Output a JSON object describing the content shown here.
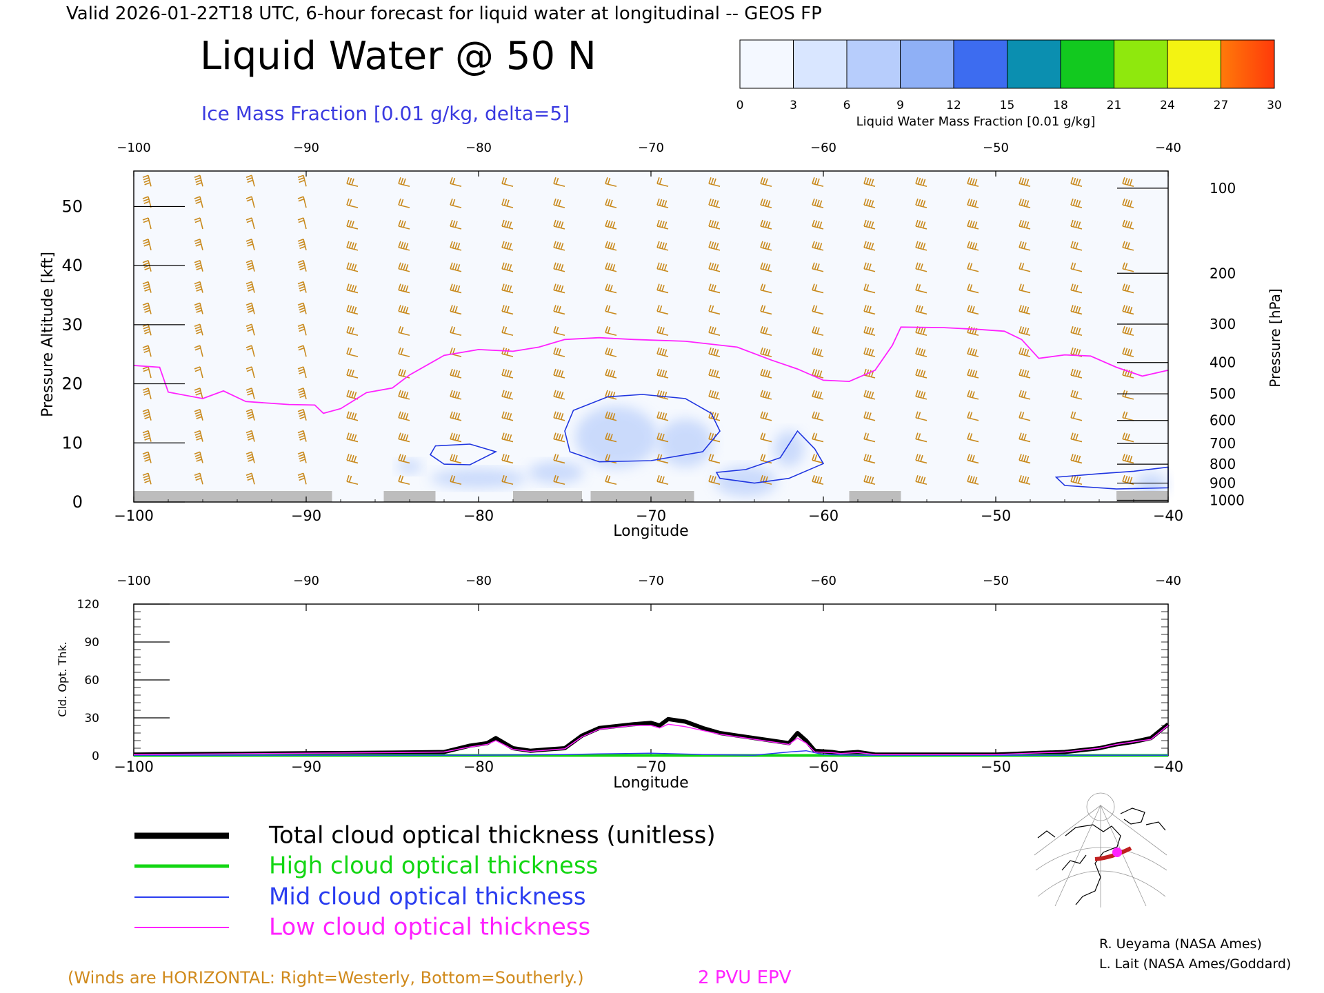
{
  "header": {
    "valid_line": "Valid 2026-01-22T18 UTC, 6-hour forecast for liquid water at longitudinal -- GEOS FP",
    "title": "Liquid Water @ 50 N",
    "subtitle": "Ice Mass Fraction [0.01 g/kg, delta=5]"
  },
  "colorbar": {
    "ticks": [
      "0",
      "3",
      "6",
      "9",
      "12",
      "15",
      "18",
      "21",
      "24",
      "27",
      "30"
    ],
    "label": "Liquid Water Mass Fraction [0.01 g/kg]",
    "colors": [
      "#f4f8ff",
      "#d9e6ff",
      "#b7cdfc",
      "#8fb0f6",
      "#3d6cf0",
      "#0b8fb0",
      "#12c91f",
      "#8fe80d",
      "#f3f312",
      "#ffb80a",
      "#ff7a0a",
      "#ff3a0a"
    ]
  },
  "legend": {
    "total": {
      "label": "Total cloud optical thickness (unitless)",
      "color": "#000000"
    },
    "high": {
      "label": "High cloud optical thickness",
      "color": "#13d613"
    },
    "mid": {
      "label": "Mid cloud optical thickness",
      "color": "#2a3df0"
    },
    "low": {
      "label": "Low cloud optical thickness",
      "color": "#ff22ff"
    }
  },
  "footer": {
    "winds_note": "(Winds are HORIZONTAL: Right=Westerly, Bottom=Southerly.)",
    "epv_label": "2 PVU EPV",
    "credit_1": "R. Ueyama (NASA Ames)",
    "credit_2": "L. Lait (NASA Ames/Goddard)"
  },
  "chart_data": [
    {
      "type": "heatmap",
      "title": "Liquid Water @ 50 N",
      "xlabel": "Longitude",
      "ylabel": "Pressure Altitude [kft]",
      "y2label": "Pressure [hPa]",
      "xlim": [
        -100,
        -40
      ],
      "ylim": [
        0,
        56
      ],
      "x_ticks": [
        "-100",
        "-90",
        "-80",
        "-70",
        "-60",
        "-50",
        "-40"
      ],
      "y_ticks": [
        "0",
        "10",
        "20",
        "30",
        "40",
        "50"
      ],
      "pressure_ticks": [
        {
          "p": "100",
          "kft": 53.1
        },
        {
          "p": "200",
          "kft": 38.7
        },
        {
          "p": "300",
          "kft": 30.1
        },
        {
          "p": "400",
          "kft": 23.6
        },
        {
          "p": "500",
          "kft": 18.3
        },
        {
          "p": "600",
          "kft": 13.8
        },
        {
          "p": "700",
          "kft": 9.9
        },
        {
          "p": "800",
          "kft": 6.4
        },
        {
          "p": "900",
          "kft": 3.2
        },
        {
          "p": "1000",
          "kft": 0.3
        }
      ],
      "epv_2pvu_kft": [
        [
          -100,
          23.1
        ],
        [
          -98.5,
          22.8
        ],
        [
          -98,
          18.6
        ],
        [
          -96,
          17.5
        ],
        [
          -94.8,
          18.8
        ],
        [
          -93.5,
          17
        ],
        [
          -91,
          16.5
        ],
        [
          -89.5,
          16.4
        ],
        [
          -89,
          15
        ],
        [
          -88,
          15.8
        ],
        [
          -86.5,
          18.5
        ],
        [
          -85,
          19.3
        ],
        [
          -84,
          21.5
        ],
        [
          -82,
          24.8
        ],
        [
          -80,
          25.8
        ],
        [
          -78,
          25.5
        ],
        [
          -76.5,
          26.2
        ],
        [
          -75,
          27.5
        ],
        [
          -73,
          27.8
        ],
        [
          -71,
          27.5
        ],
        [
          -68,
          27.2
        ],
        [
          -65,
          26.2
        ],
        [
          -63,
          24
        ],
        [
          -61.5,
          22.5
        ],
        [
          -60,
          20.6
        ],
        [
          -58.5,
          20.4
        ],
        [
          -57,
          22.3
        ],
        [
          -56,
          26.5
        ],
        [
          -55.5,
          29.6
        ],
        [
          -53,
          29.5
        ],
        [
          -51,
          29.2
        ],
        [
          -49.5,
          28.9
        ],
        [
          -48.5,
          27.5
        ],
        [
          -47.5,
          24.3
        ],
        [
          -46,
          24.9
        ],
        [
          -44.5,
          24.7
        ],
        [
          -43,
          22.8
        ],
        [
          -41.5,
          21.3
        ],
        [
          -40,
          22.3
        ]
      ],
      "ice_mass_fraction_contours": [
        {
          "level": 5,
          "points": [
            [
              -74.5,
              15.5
            ],
            [
              -72.5,
              17.8
            ],
            [
              -70.5,
              18.2
            ],
            [
              -68,
              17.5
            ],
            [
              -66.5,
              15
            ],
            [
              -66,
              12
            ],
            [
              -67,
              8.5
            ],
            [
              -70,
              7
            ],
            [
              -73,
              6.8
            ],
            [
              -74.7,
              8.5
            ],
            [
              -75,
              12
            ]
          ]
        },
        {
          "level": 5,
          "points": [
            [
              -82.5,
              9.5
            ],
            [
              -80.5,
              9.8
            ],
            [
              -79,
              8.5
            ],
            [
              -80.5,
              6.3
            ],
            [
              -82,
              6.4
            ],
            [
              -82.8,
              8
            ]
          ]
        },
        {
          "level": 5,
          "points": [
            [
              -64.5,
              5.5
            ],
            [
              -62.5,
              7.5
            ],
            [
              -61.5,
              12
            ],
            [
              -60.5,
              9
            ],
            [
              -60,
              6.5
            ],
            [
              -62,
              4
            ],
            [
              -64,
              3.2
            ],
            [
              -66,
              4
            ],
            [
              -66.2,
              5
            ]
          ]
        },
        {
          "level": 5,
          "points": [
            [
              -46.5,
              4.2
            ],
            [
              -44,
              4.8
            ],
            [
              -42,
              5.2
            ],
            [
              -40,
              5.9
            ],
            [
              -40,
              2.4
            ],
            [
              -43,
              2.2
            ],
            [
              -46,
              2.8
            ]
          ]
        }
      ],
      "liquid_water_max": 6,
      "grey_terrain_segments": [
        [
          -100,
          -88.5
        ],
        [
          -85.5,
          -82.5
        ],
        [
          -78,
          -74
        ],
        [
          -73.5,
          -67.5
        ],
        [
          -58.5,
          -55.5
        ],
        [
          -43,
          -40
        ]
      ]
    },
    {
      "type": "line",
      "xlabel": "Longitude",
      "ylabel": "Cld. Opt. Thk.",
      "xlim": [
        -100,
        -40
      ],
      "ylim": [
        0,
        120
      ],
      "x_ticks": [
        "-100",
        "-90",
        "-80",
        "-70",
        "-60",
        "-50",
        "-40"
      ],
      "y_ticks": [
        "0",
        "30",
        "60",
        "90",
        "120"
      ],
      "series": [
        {
          "name": "Total cloud optical thickness (unitless)",
          "color": "#000000",
          "x": [
            -100,
            -95,
            -90,
            -85,
            -82,
            -80.5,
            -79.5,
            -79,
            -78,
            -77,
            -76,
            -75,
            -74,
            -73,
            -71,
            -70,
            -69.5,
            -69,
            -68,
            -67,
            -66,
            -65,
            -63,
            -62,
            -61.5,
            -61,
            -60.5,
            -59.5,
            -59,
            -58,
            -57.5,
            -57,
            -55,
            -52,
            -50,
            -48,
            -46,
            -44,
            -43,
            -42,
            -41,
            -40
          ],
          "y": [
            1,
            1.5,
            2,
            2.5,
            3,
            8,
            10,
            14,
            6,
            4,
            5,
            6,
            16,
            22,
            25,
            26,
            24,
            29,
            27,
            22,
            18,
            16,
            12,
            10,
            18,
            12,
            4,
            3,
            2,
            3,
            2,
            1,
            1,
            1,
            1,
            2,
            3,
            6,
            9,
            11,
            14,
            25
          ]
        },
        {
          "name": "High cloud optical thickness",
          "color": "#13d613",
          "x": [
            -100,
            -40
          ],
          "y": [
            0.3,
            0.3
          ]
        },
        {
          "name": "Mid cloud optical thickness",
          "color": "#2a3df0",
          "x": [
            -100,
            -80,
            -75,
            -73,
            -70,
            -67,
            -64,
            -62,
            -61,
            -60,
            -58,
            -40
          ],
          "y": [
            0.5,
            0.5,
            1,
            1.5,
            2,
            1,
            0.5,
            3,
            4,
            1,
            0.5,
            0.5
          ]
        },
        {
          "name": "Low cloud optical thickness",
          "color": "#ff22ff",
          "x": [
            -100,
            -95,
            -90,
            -85,
            -82,
            -80.5,
            -79.5,
            -79,
            -78,
            -77,
            -76,
            -75,
            -74,
            -73,
            -71,
            -70,
            -69.5,
            -69,
            -68,
            -67,
            -66,
            -65,
            -63,
            -62,
            -61.5,
            -61,
            -60.5,
            -59.5,
            -59,
            -58,
            -57.5,
            -57,
            -55,
            -52,
            -50,
            -48,
            -46,
            -44,
            -43,
            -42,
            -41,
            -40
          ],
          "y": [
            1,
            1.5,
            2,
            2.5,
            3,
            7,
            9,
            12,
            5,
            3.5,
            4.5,
            5.5,
            15,
            21,
            24,
            24,
            22,
            25,
            23,
            20,
            17,
            15,
            11,
            9,
            14,
            10,
            3,
            2.5,
            1.8,
            2.6,
            1.8,
            1,
            1,
            1,
            1,
            2,
            3,
            6,
            9,
            11,
            13,
            24
          ]
        }
      ]
    }
  ]
}
